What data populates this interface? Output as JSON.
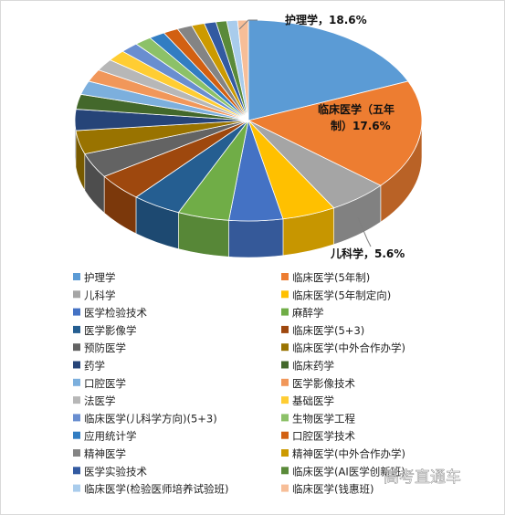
{
  "chart_data": {
    "type": "pie",
    "categories": [
      "护理学",
      "临床医学(5年制)",
      "儿科学",
      "临床医学(5年制定向)",
      "医学检验技术",
      "麻醉学",
      "医学影像学",
      "临床医学(5+3)",
      "预防医学",
      "临床医学(中外合作办学)",
      "药学",
      "临床药学",
      "口腔医学",
      "医学影像技术",
      "法医学",
      "基础医学",
      "临床医学(儿科学方向)(5+3)",
      "生物医学工程",
      "应用统计学",
      "口腔医学技术",
      "精神医学",
      "精神医学(中外合作办学)",
      "医学实验技术",
      "临床医学(AI医学创新班)",
      "临床医学(检验医师培养试验班)",
      "临床医学(钱惠班)"
    ],
    "values": [
      18.6,
      17.6,
      5.6,
      5.0,
      5.0,
      4.8,
      4.6,
      4.4,
      4.0,
      3.8,
      3.4,
      2.4,
      2.2,
      2.0,
      1.9,
      1.8,
      1.7,
      1.6,
      1.5,
      1.4,
      1.4,
      1.2,
      1.1,
      1.0,
      1.0,
      1.0
    ],
    "colors": [
      "#5b9bd5",
      "#ed7d31",
      "#a5a5a5",
      "#ffc000",
      "#4472c4",
      "#70ad47",
      "#255e91",
      "#9e480e",
      "#636363",
      "#997300",
      "#264478",
      "#43682b",
      "#7cafdd",
      "#f1975a",
      "#b7b7b7",
      "#ffcd33",
      "#698ed0",
      "#8cc168",
      "#327dc2",
      "#d26012",
      "#848484",
      "#cc9a00",
      "#335aa1",
      "#5a8a39",
      "#a9ccec",
      "#f7be98"
    ],
    "labels": [
      {
        "text": "护理学，18.6%"
      },
      {
        "text": "临床医学（五年"
      },
      {
        "text": "制）17.6%"
      },
      {
        "text": "儿科学，5.6%"
      }
    ],
    "legend_position": "bottom",
    "style": "3d-pie"
  },
  "watermark": "高考直通车"
}
